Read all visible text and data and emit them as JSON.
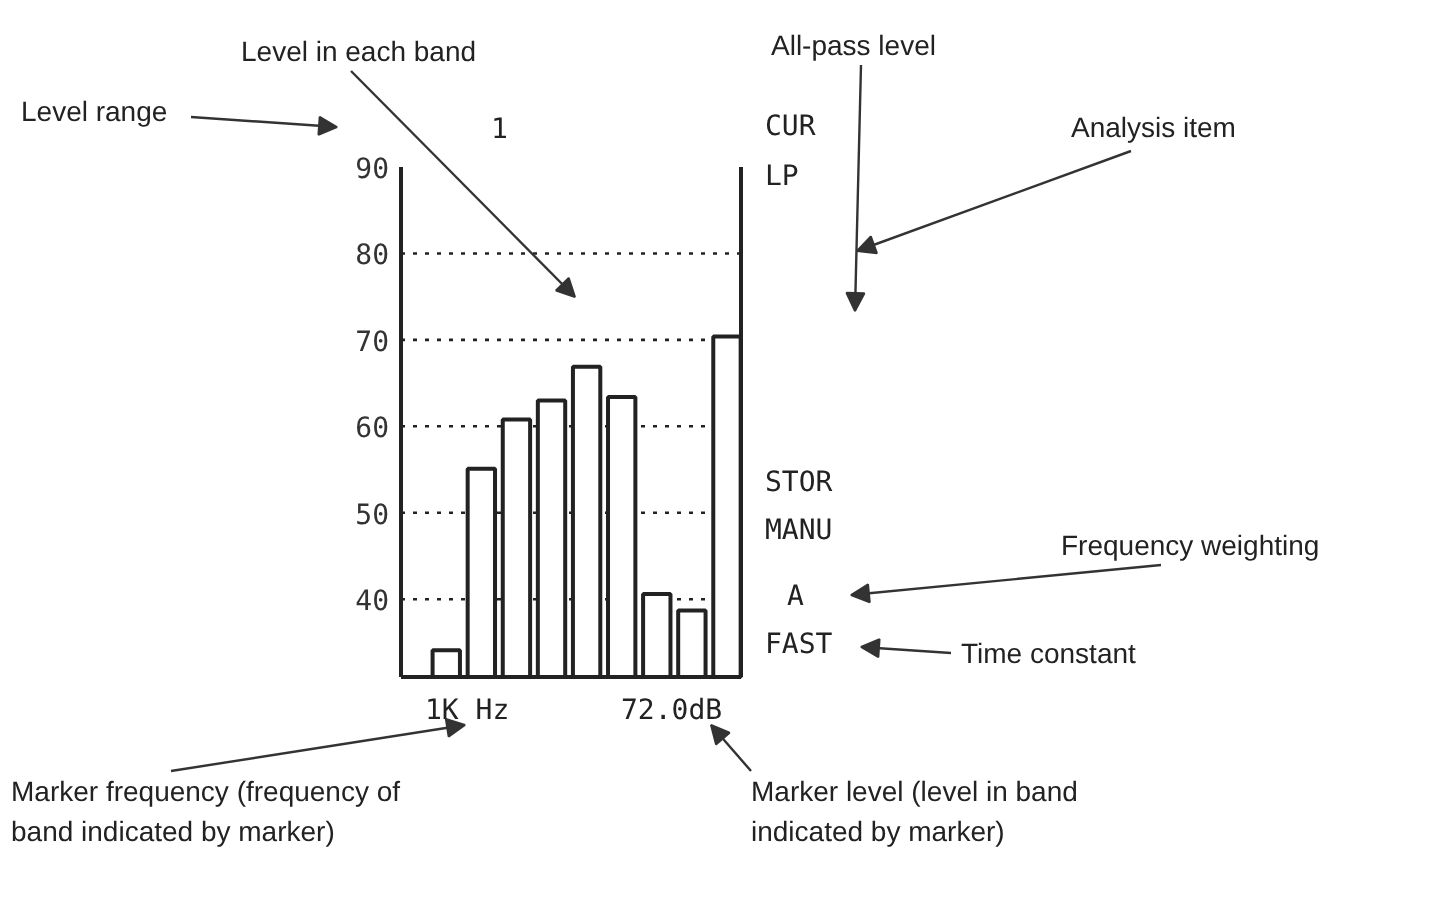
{
  "chart_data": {
    "type": "bar",
    "categories": [
      null,
      null,
      null,
      null,
      null,
      null,
      null,
      null,
      null
    ],
    "values": [
      34.1,
      55.1,
      60.8,
      63.0,
      66.9,
      63.4,
      40.6,
      38.7,
      70.4
    ],
    "color": "#ffffff",
    "ylim": [
      31,
      90
    ],
    "yticks": [
      40,
      50,
      60,
      70,
      80,
      90
    ],
    "grid": "y",
    "tick_labels": "y",
    "annotations": [
      "Level range",
      "Level in each band",
      "All-pass level",
      "Analysis item",
      "Frequency weighting",
      "Time constant",
      "Marker frequency (frequency of band indicated by marker)",
      "Marker level (level in band indicated by marker)",
      "1",
      "CUR",
      "LP",
      "STOR",
      "MANU",
      "A",
      "FAST",
      "1K Hz",
      "72.0dB"
    ]
  }
}
